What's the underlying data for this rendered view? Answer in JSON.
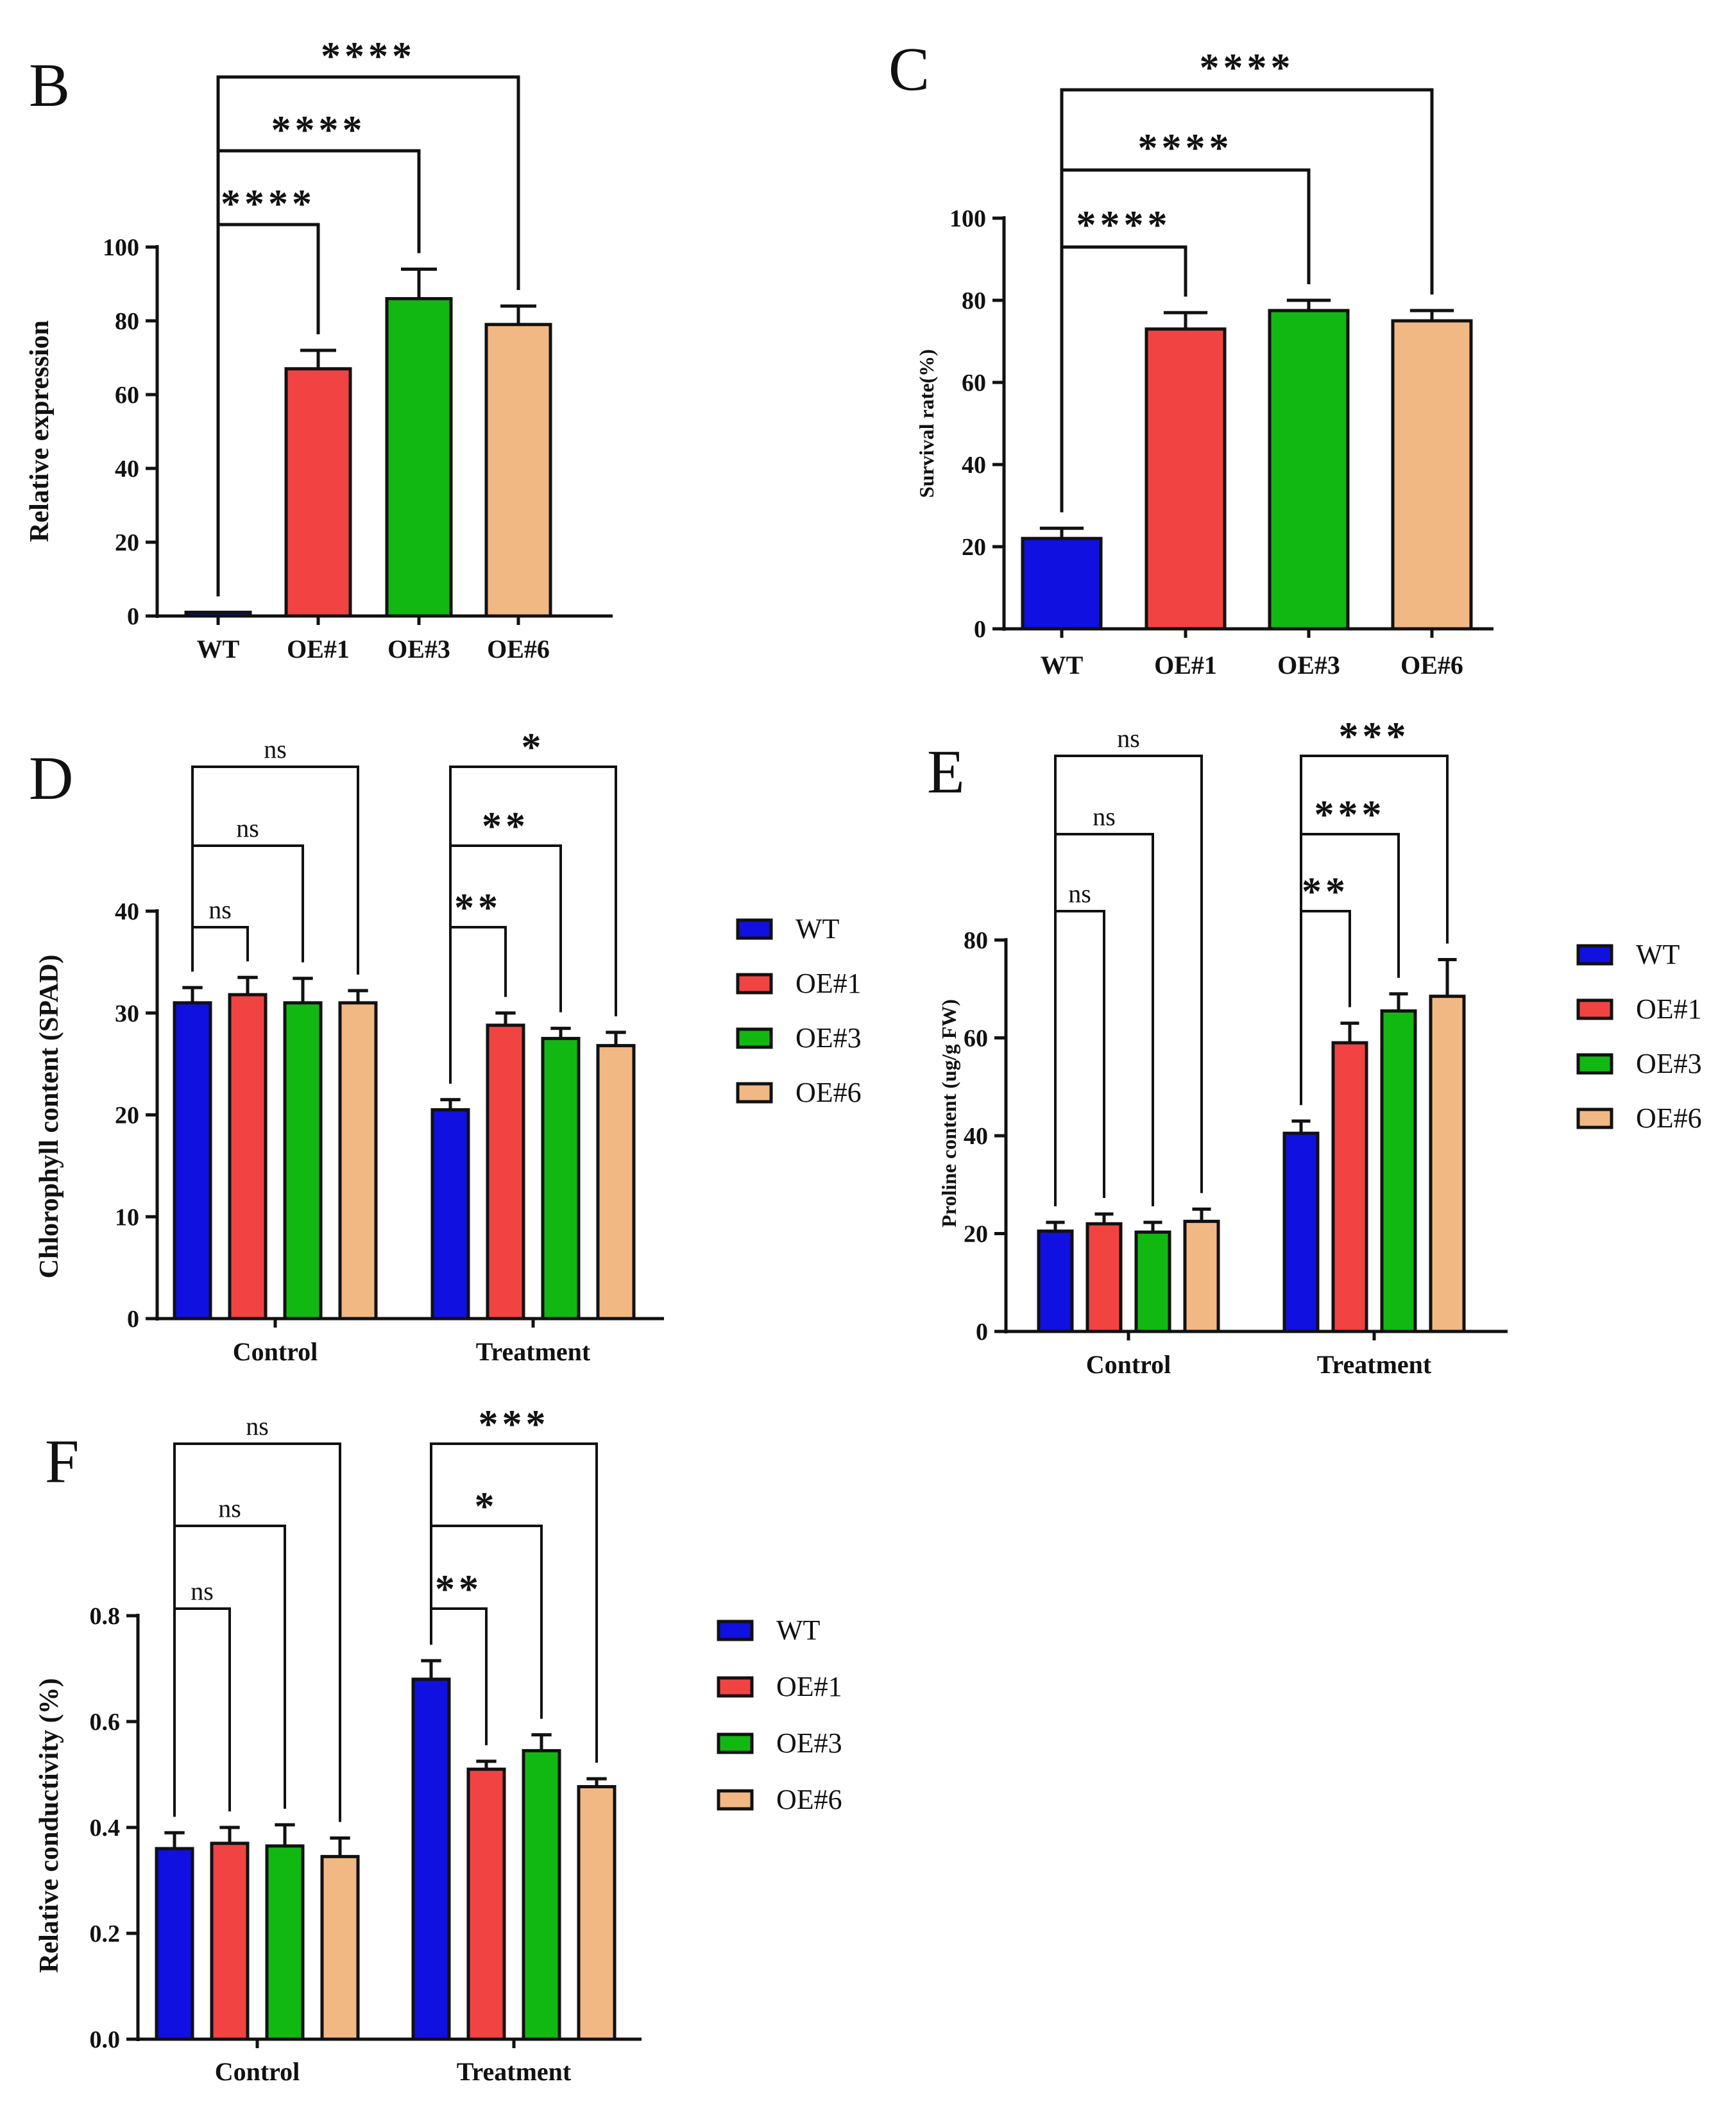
{
  "colors": {
    "WT": "#1010e0",
    "OE#1": "#f24343",
    "OE#3": "#12b812",
    "OE#6": "#f2b884"
  },
  "chart_data": [
    {
      "panel": "B",
      "type": "bar",
      "ylabel": "Relative expression",
      "ylim": [
        0,
        100
      ],
      "yticks": [
        "0",
        "20",
        "40",
        "60",
        "80",
        "100"
      ],
      "categories": [
        "WT",
        "OE#1",
        "OE#3",
        "OE#6"
      ],
      "values": [
        1,
        67,
        86,
        79
      ],
      "errors": [
        0,
        5,
        8,
        5
      ],
      "significance": [
        {
          "from": "WT",
          "to": "OE#1",
          "label": "****"
        },
        {
          "from": "WT",
          "to": "OE#3",
          "label": "****"
        },
        {
          "from": "WT",
          "to": "OE#6",
          "label": "****"
        }
      ]
    },
    {
      "panel": "C",
      "type": "bar",
      "ylabel": "Survival rate(%)",
      "ylim": [
        0,
        100
      ],
      "yticks": [
        "0",
        "20",
        "40",
        "60",
        "80",
        "100"
      ],
      "categories": [
        "WT",
        "OE#1",
        "OE#3",
        "OE#6"
      ],
      "values": [
        22,
        73,
        77.5,
        75
      ],
      "errors": [
        2.5,
        4,
        2.5,
        2.5
      ],
      "significance": [
        {
          "from": "WT",
          "to": "OE#1",
          "label": "****"
        },
        {
          "from": "WT",
          "to": "OE#3",
          "label": "****"
        },
        {
          "from": "WT",
          "to": "OE#6",
          "label": "****"
        }
      ]
    },
    {
      "panel": "D",
      "type": "bar",
      "ylabel": "Chlorophyll content (SPAD)",
      "ylim": [
        0,
        40
      ],
      "yticks": [
        "0",
        "10",
        "20",
        "30",
        "40"
      ],
      "categories": [
        "Control",
        "Treatment"
      ],
      "legend": [
        "WT",
        "OE#1",
        "OE#3",
        "OE#6"
      ],
      "series": [
        {
          "name": "WT",
          "values": [
            31,
            20.5
          ],
          "errors": [
            1.5,
            1
          ]
        },
        {
          "name": "OE#1",
          "values": [
            31.8,
            28.8
          ],
          "errors": [
            1.7,
            1.2
          ]
        },
        {
          "name": "OE#3",
          "values": [
            31,
            27.5
          ],
          "errors": [
            2.4,
            1
          ]
        },
        {
          "name": "OE#6",
          "values": [
            31,
            26.8
          ],
          "errors": [
            1.2,
            1.3
          ]
        }
      ],
      "significance": [
        {
          "group": "Control",
          "from": "WT",
          "to": "OE#1",
          "label": "ns"
        },
        {
          "group": "Control",
          "from": "WT",
          "to": "OE#3",
          "label": "ns"
        },
        {
          "group": "Control",
          "from": "WT",
          "to": "OE#6",
          "label": "ns"
        },
        {
          "group": "Treatment",
          "from": "WT",
          "to": "OE#1",
          "label": "**"
        },
        {
          "group": "Treatment",
          "from": "WT",
          "to": "OE#3",
          "label": "**"
        },
        {
          "group": "Treatment",
          "from": "WT",
          "to": "OE#6",
          "label": "*"
        }
      ]
    },
    {
      "panel": "E",
      "type": "bar",
      "ylabel": "Proline content (ug/g FW)",
      "ylim": [
        0,
        80
      ],
      "yticks": [
        "0",
        "20",
        "40",
        "60",
        "80"
      ],
      "categories": [
        "Control",
        "Treatment"
      ],
      "legend": [
        "WT",
        "OE#1",
        "OE#3",
        "OE#6"
      ],
      "series": [
        {
          "name": "WT",
          "values": [
            20.5,
            40.5
          ],
          "errors": [
            1.8,
            2.5
          ]
        },
        {
          "name": "OE#1",
          "values": [
            22,
            59
          ],
          "errors": [
            2,
            4
          ]
        },
        {
          "name": "OE#3",
          "values": [
            20.3,
            65.5
          ],
          "errors": [
            2,
            3.5
          ]
        },
        {
          "name": "OE#6",
          "values": [
            22.5,
            68.5
          ],
          "errors": [
            2.5,
            7.5
          ]
        }
      ],
      "significance": [
        {
          "group": "Control",
          "from": "WT",
          "to": "OE#1",
          "label": "ns"
        },
        {
          "group": "Control",
          "from": "WT",
          "to": "OE#3",
          "label": "ns"
        },
        {
          "group": "Control",
          "from": "WT",
          "to": "OE#6",
          "label": "ns"
        },
        {
          "group": "Treatment",
          "from": "WT",
          "to": "OE#1",
          "label": "**"
        },
        {
          "group": "Treatment",
          "from": "WT",
          "to": "OE#3",
          "label": "***"
        },
        {
          "group": "Treatment",
          "from": "WT",
          "to": "OE#6",
          "label": "***"
        }
      ]
    },
    {
      "panel": "F",
      "type": "bar",
      "ylabel": "Relative conductivity (%)",
      "ylim": [
        0,
        0.8
      ],
      "yticks": [
        "0.0",
        "0.2",
        "0.4",
        "0.6",
        "0.8"
      ],
      "categories": [
        "Control",
        "Treatment"
      ],
      "legend": [
        "WT",
        "OE#1",
        "OE#3",
        "OE#6"
      ],
      "series": [
        {
          "name": "WT",
          "values": [
            0.36,
            0.68
          ],
          "errors": [
            0.03,
            0.035
          ]
        },
        {
          "name": "OE#1",
          "values": [
            0.37,
            0.51
          ],
          "errors": [
            0.03,
            0.015
          ]
        },
        {
          "name": "OE#3",
          "values": [
            0.365,
            0.545
          ],
          "errors": [
            0.04,
            0.03
          ]
        },
        {
          "name": "OE#6",
          "values": [
            0.345,
            0.477
          ],
          "errors": [
            0.035,
            0.015
          ]
        }
      ],
      "significance": [
        {
          "group": "Control",
          "from": "WT",
          "to": "OE#1",
          "label": "ns"
        },
        {
          "group": "Control",
          "from": "WT",
          "to": "OE#3",
          "label": "ns"
        },
        {
          "group": "Control",
          "from": "WT",
          "to": "OE#6",
          "label": "ns"
        },
        {
          "group": "Treatment",
          "from": "WT",
          "to": "OE#1",
          "label": "**"
        },
        {
          "group": "Treatment",
          "from": "WT",
          "to": "OE#3",
          "label": "*"
        },
        {
          "group": "Treatment",
          "from": "WT",
          "to": "OE#6",
          "label": "***"
        }
      ]
    }
  ]
}
